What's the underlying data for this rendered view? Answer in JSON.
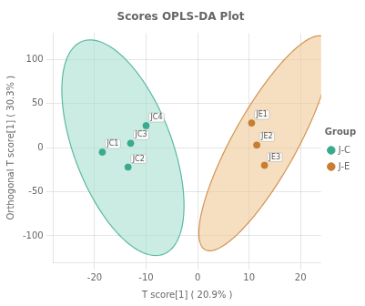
{
  "chart_data": {
    "type": "scatter",
    "title": "Scores OPLS-DA Plot",
    "xlabel": "T score[1] ( 20.9% )",
    "ylabel": "Orthogonal T score[1] ( 30.3% )",
    "xlim": [
      -28,
      24
    ],
    "ylim": [
      -130,
      130
    ],
    "xticks": [
      -20,
      -10,
      0,
      10,
      20
    ],
    "yticks": [
      -100,
      -50,
      0,
      50,
      100
    ],
    "grid": true,
    "legend": "right",
    "legend_title": "Group",
    "series": [
      {
        "name": "J-C",
        "color": "#3aaa8e",
        "x": [
          -18.5,
          -13.5,
          -13.0,
          -10.0
        ],
        "values": [
          -5,
          -22,
          5,
          25
        ],
        "labels": [
          "JC1",
          "JC2",
          "JC3",
          "JC4"
        ],
        "ellipse": {
          "cx": -14.5,
          "cy": 0,
          "width": 20,
          "height": 245,
          "angle": 3,
          "color": "#a8dfd0"
        }
      },
      {
        "name": "J-E",
        "color": "#c87d30",
        "x": [
          10.5,
          11.5,
          13.0
        ],
        "values": [
          28,
          3,
          -20
        ],
        "labels": [
          "JE1",
          "JE2",
          "JE3"
        ],
        "ellipse": {
          "cx": 13.0,
          "cy": 5,
          "width": 14,
          "height": 245,
          "angle": -5,
          "color": "#f0c898"
        }
      }
    ]
  }
}
